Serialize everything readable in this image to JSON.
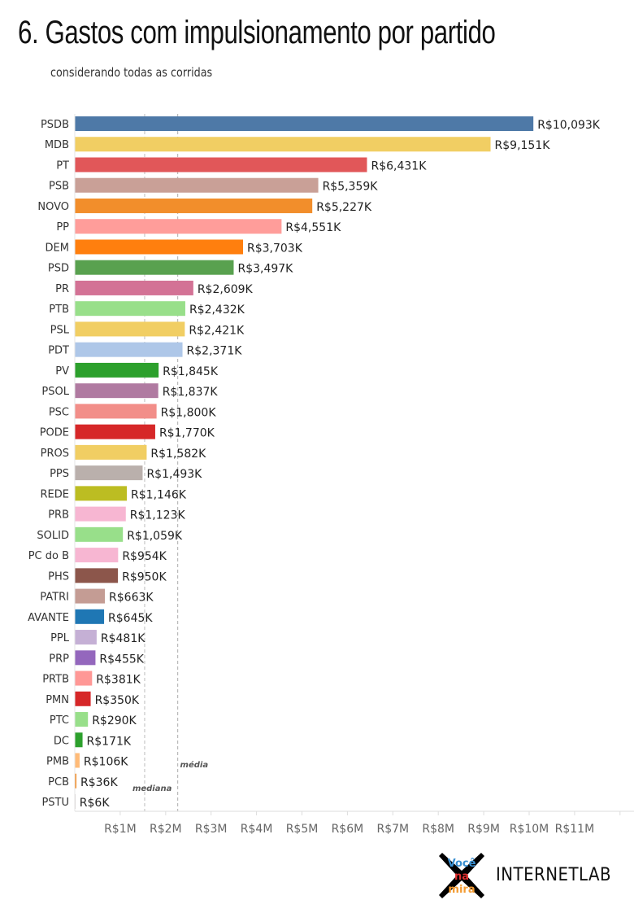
{
  "chart_data": {
    "type": "bar",
    "orientation": "horizontal",
    "title": "6. Gastos com impulsionamento por partido",
    "subtitle": "considerando todas as corridas",
    "categories": [
      "PSDB",
      "MDB",
      "PT",
      "PSB",
      "NOVO",
      "PP",
      "DEM",
      "PSD",
      "PR",
      "PTB",
      "PSL",
      "PDT",
      "PV",
      "PSOL",
      "PSC",
      "PODE",
      "PROS",
      "PPS",
      "REDE",
      "PRB",
      "SOLID",
      "PC do B",
      "PHS",
      "PATRI",
      "AVANTE",
      "PPL",
      "PRP",
      "PRTB",
      "PMN",
      "PTC",
      "DC",
      "PMB",
      "PCB",
      "PSTU"
    ],
    "values": [
      10093,
      9151,
      6431,
      5359,
      5227,
      4551,
      3703,
      3497,
      2609,
      2432,
      2421,
      2371,
      1845,
      1837,
      1800,
      1770,
      1582,
      1493,
      1146,
      1123,
      1059,
      954,
      950,
      663,
      645,
      481,
      455,
      381,
      350,
      290,
      171,
      106,
      36,
      6
    ],
    "value_unit": "R$ thousands",
    "data_labels": [
      "R$10,093K",
      "R$9,151K",
      "R$6,431K",
      "R$5,359K",
      "R$5,227K",
      "R$4,551K",
      "R$3,703K",
      "R$3,497K",
      "R$2,609K",
      "R$2,432K",
      "R$2,421K",
      "R$2,371K",
      "R$1,845K",
      "R$1,837K",
      "R$1,800K",
      "R$1,770K",
      "R$1,582K",
      "R$1,493K",
      "R$1,146K",
      "R$1,123K",
      "R$1,059K",
      "R$954K",
      "R$950K",
      "R$663K",
      "R$645K",
      "R$481K",
      "R$455K",
      "R$381K",
      "R$350K",
      "R$290K",
      "R$171K",
      "R$106K",
      "R$36K",
      "R$6K"
    ],
    "colors": [
      "#4e79a7",
      "#f1ce63",
      "#e15759",
      "#c9a097",
      "#f28e2b",
      "#ff9d9a",
      "#ff7f0e",
      "#59a14f",
      "#d37295",
      "#98df8a",
      "#f1ce63",
      "#aec7e8",
      "#2ca02c",
      "#b07aa1",
      "#f28e89",
      "#d62728",
      "#f1ce63",
      "#bab0ac",
      "#bcbd22",
      "#f7b6d2",
      "#98df8a",
      "#f7b6d2",
      "#8c564b",
      "#c49c94",
      "#1f77b4",
      "#c5b0d5",
      "#9467bd",
      "#ff9896",
      "#d62728",
      "#98df8a",
      "#2ca02c",
      "#ffbb78",
      "#f28e2b",
      "#bab0ac"
    ],
    "xticks": [
      "R$1M",
      "R$2M",
      "R$3M",
      "R$4M",
      "R$5M",
      "R$6M",
      "R$7M",
      "R$8M",
      "R$9M",
      "R$10M",
      "R$11M"
    ],
    "xlim": [
      0,
      12000
    ],
    "reference_lines": [
      {
        "label": "mediana",
        "value": 1537.5
      },
      {
        "label": "média",
        "value": 2264
      }
    ],
    "grid": false,
    "legend": "none"
  },
  "footer": {
    "logo_text": [
      "Você",
      "na",
      "mira"
    ],
    "brand": "INTERNETLAB"
  }
}
